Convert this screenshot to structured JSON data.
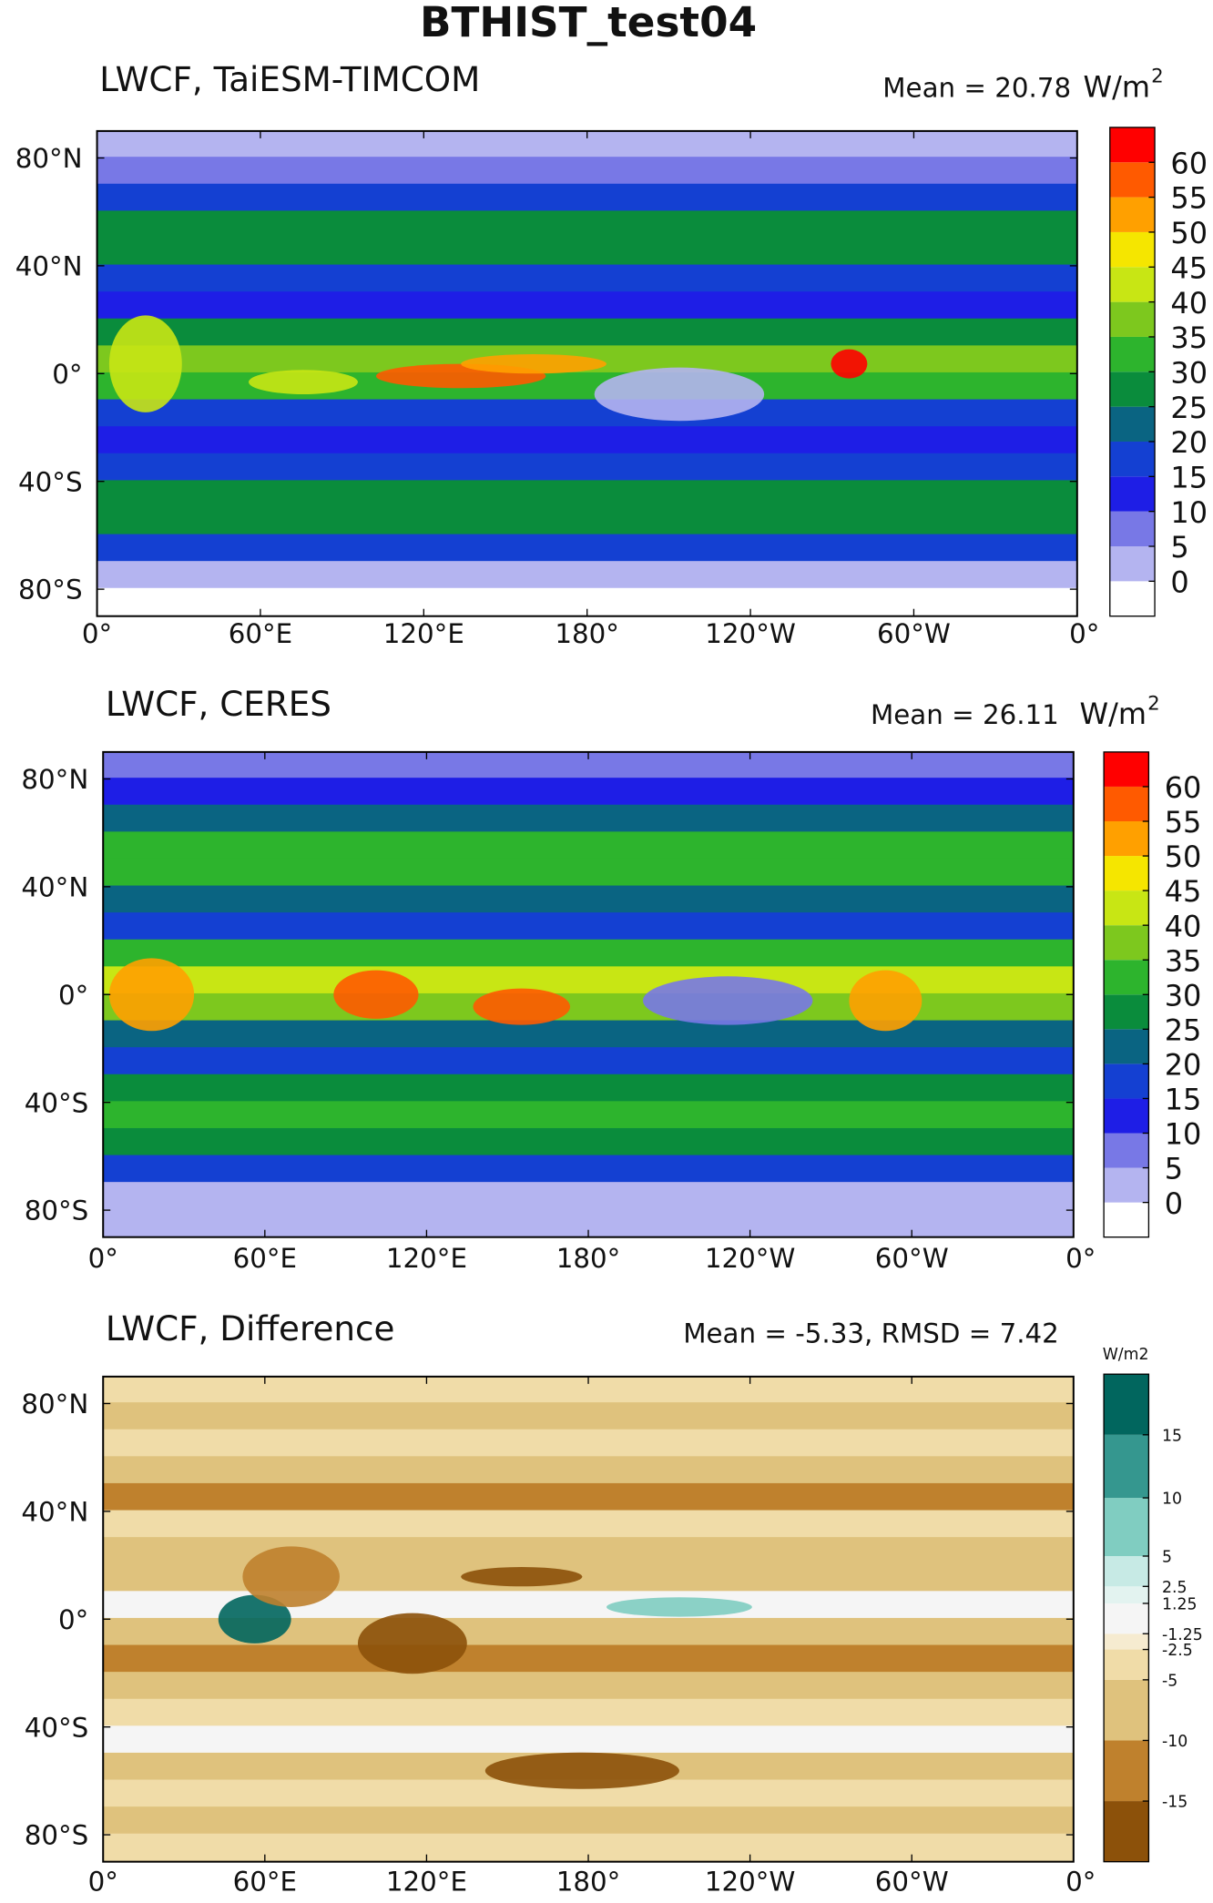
{
  "title": "BTHIST_test04",
  "lat_labels": [
    "80°N",
    "40°N",
    "0°",
    "40°S",
    "80°S"
  ],
  "lon_labels": [
    "0°",
    "60°E",
    "120°E",
    "180°",
    "120°W",
    "60°W",
    "0°"
  ],
  "panels": [
    {
      "title": "LWCF, TaiESM-TIMCOM",
      "stat": "Mean = 20.78",
      "unit": "W/m",
      "unit_sup": "2",
      "colorbar": {
        "colors": [
          "#ffffff",
          "#b4b4f0",
          "#7878e6",
          "#1e1ee6",
          "#1440d2",
          "#0a6482",
          "#0a8c3c",
          "#2db42d",
          "#7dc81e",
          "#c8e614",
          "#f5e600",
          "#ffa000",
          "#ff5a00",
          "#ff0000"
        ],
        "ticks": [
          0,
          5,
          10,
          15,
          20,
          25,
          30,
          35,
          40,
          45,
          50,
          55,
          60
        ]
      }
    },
    {
      "title": "LWCF, CERES",
      "stat": "Mean = 26.11",
      "unit": "W/m",
      "unit_sup": "2",
      "colorbar": {
        "colors": [
          "#ffffff",
          "#b4b4f0",
          "#7878e6",
          "#1e1ee6",
          "#1440d2",
          "#0a6482",
          "#0a8c3c",
          "#2db42d",
          "#7dc81e",
          "#c8e614",
          "#f5e600",
          "#ffa000",
          "#ff5a00",
          "#ff0000"
        ],
        "ticks": [
          0,
          5,
          10,
          15,
          20,
          25,
          30,
          35,
          40,
          45,
          50,
          55,
          60
        ]
      }
    },
    {
      "title": "LWCF, Difference",
      "stat": "Mean = -5.33, RMSD = 7.42",
      "unit": "W/m2",
      "colorbar": {
        "colors": [
          "#8c510a",
          "#bf812d",
          "#dfc27d",
          "#f0dca8",
          "#f6ebd0",
          "#f5f5f5",
          "#e3f3f0",
          "#c7eae5",
          "#80cdc1",
          "#35978f",
          "#01665e"
        ],
        "ticks": [
          -15,
          -10,
          -5,
          -2.5,
          -1.25,
          1.25,
          2.5,
          5,
          10,
          15
        ]
      }
    }
  ]
}
